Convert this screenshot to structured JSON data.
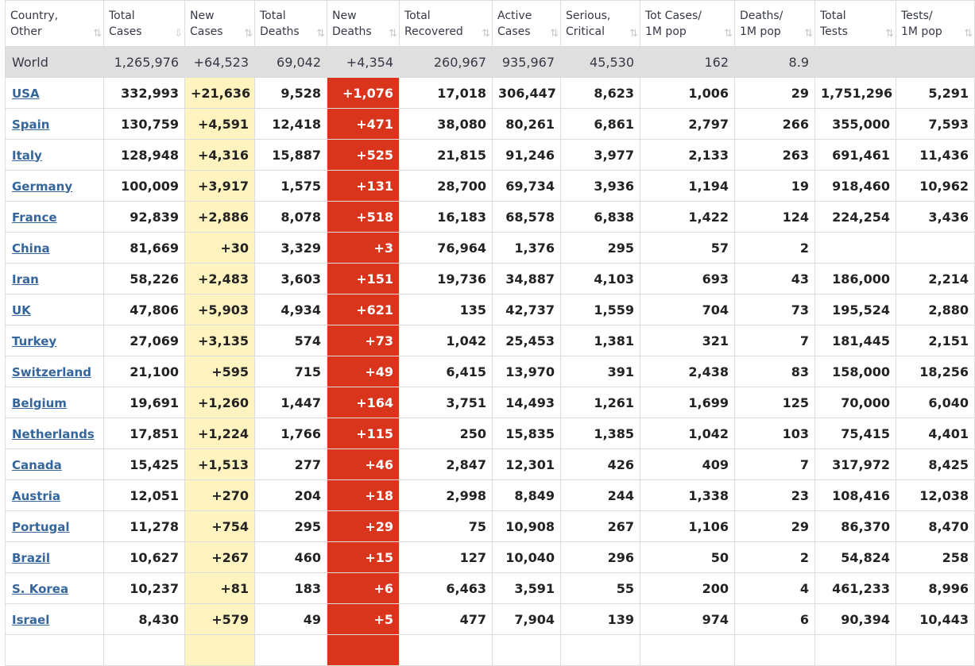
{
  "columns": [
    {
      "l1": "Country,",
      "l2": "Other",
      "sort": "⇅"
    },
    {
      "l1": "Total",
      "l2": "Cases",
      "sort": "⇩"
    },
    {
      "l1": "New",
      "l2": "Cases",
      "sort": "⇅"
    },
    {
      "l1": "Total",
      "l2": "Deaths",
      "sort": "⇅"
    },
    {
      "l1": "New",
      "l2": "Deaths",
      "sort": "⇅"
    },
    {
      "l1": "Total",
      "l2": "Recovered",
      "sort": "⇅"
    },
    {
      "l1": "Active",
      "l2": "Cases",
      "sort": "⇅"
    },
    {
      "l1": "Serious,",
      "l2": "Critical",
      "sort": "⇅"
    },
    {
      "l1": "Tot Cases/",
      "l2": "1M pop",
      "sort": "⇅"
    },
    {
      "l1": "Deaths/",
      "l2": "1M pop",
      "sort": "⇅"
    },
    {
      "l1": "Total",
      "l2": "Tests",
      "sort": "⇅"
    },
    {
      "l1": "Tests/",
      "l2": "1M pop",
      "sort": "⇅"
    }
  ],
  "world": {
    "country": "World",
    "total_cases": "1,265,976",
    "new_cases": "+64,523",
    "total_deaths": "69,042",
    "new_deaths": "+4,354",
    "total_recovered": "260,967",
    "active_cases": "935,967",
    "serious": "45,530",
    "cases_per_m": "162",
    "deaths_per_m": "8.9",
    "total_tests": "",
    "tests_per_m": ""
  },
  "rows": [
    {
      "country": "USA",
      "total_cases": "332,993",
      "new_cases": "+21,636",
      "total_deaths": "9,528",
      "new_deaths": "+1,076",
      "total_recovered": "17,018",
      "active_cases": "306,447",
      "serious": "8,623",
      "cases_per_m": "1,006",
      "deaths_per_m": "29",
      "total_tests": "1,751,296",
      "tests_per_m": "5,291"
    },
    {
      "country": "Spain",
      "total_cases": "130,759",
      "new_cases": "+4,591",
      "total_deaths": "12,418",
      "new_deaths": "+471",
      "total_recovered": "38,080",
      "active_cases": "80,261",
      "serious": "6,861",
      "cases_per_m": "2,797",
      "deaths_per_m": "266",
      "total_tests": "355,000",
      "tests_per_m": "7,593"
    },
    {
      "country": "Italy",
      "total_cases": "128,948",
      "new_cases": "+4,316",
      "total_deaths": "15,887",
      "new_deaths": "+525",
      "total_recovered": "21,815",
      "active_cases": "91,246",
      "serious": "3,977",
      "cases_per_m": "2,133",
      "deaths_per_m": "263",
      "total_tests": "691,461",
      "tests_per_m": "11,436"
    },
    {
      "country": "Germany",
      "total_cases": "100,009",
      "new_cases": "+3,917",
      "total_deaths": "1,575",
      "new_deaths": "+131",
      "total_recovered": "28,700",
      "active_cases": "69,734",
      "serious": "3,936",
      "cases_per_m": "1,194",
      "deaths_per_m": "19",
      "total_tests": "918,460",
      "tests_per_m": "10,962"
    },
    {
      "country": "France",
      "total_cases": "92,839",
      "new_cases": "+2,886",
      "total_deaths": "8,078",
      "new_deaths": "+518",
      "total_recovered": "16,183",
      "active_cases": "68,578",
      "serious": "6,838",
      "cases_per_m": "1,422",
      "deaths_per_m": "124",
      "total_tests": "224,254",
      "tests_per_m": "3,436"
    },
    {
      "country": "China",
      "total_cases": "81,669",
      "new_cases": "+30",
      "total_deaths": "3,329",
      "new_deaths": "+3",
      "total_recovered": "76,964",
      "active_cases": "1,376",
      "serious": "295",
      "cases_per_m": "57",
      "deaths_per_m": "2",
      "total_tests": "",
      "tests_per_m": ""
    },
    {
      "country": "Iran",
      "total_cases": "58,226",
      "new_cases": "+2,483",
      "total_deaths": "3,603",
      "new_deaths": "+151",
      "total_recovered": "19,736",
      "active_cases": "34,887",
      "serious": "4,103",
      "cases_per_m": "693",
      "deaths_per_m": "43",
      "total_tests": "186,000",
      "tests_per_m": "2,214"
    },
    {
      "country": "UK",
      "total_cases": "47,806",
      "new_cases": "+5,903",
      "total_deaths": "4,934",
      "new_deaths": "+621",
      "total_recovered": "135",
      "active_cases": "42,737",
      "serious": "1,559",
      "cases_per_m": "704",
      "deaths_per_m": "73",
      "total_tests": "195,524",
      "tests_per_m": "2,880"
    },
    {
      "country": "Turkey",
      "total_cases": "27,069",
      "new_cases": "+3,135",
      "total_deaths": "574",
      "new_deaths": "+73",
      "total_recovered": "1,042",
      "active_cases": "25,453",
      "serious": "1,381",
      "cases_per_m": "321",
      "deaths_per_m": "7",
      "total_tests": "181,445",
      "tests_per_m": "2,151"
    },
    {
      "country": "Switzerland",
      "total_cases": "21,100",
      "new_cases": "+595",
      "total_deaths": "715",
      "new_deaths": "+49",
      "total_recovered": "6,415",
      "active_cases": "13,970",
      "serious": "391",
      "cases_per_m": "2,438",
      "deaths_per_m": "83",
      "total_tests": "158,000",
      "tests_per_m": "18,256"
    },
    {
      "country": "Belgium",
      "total_cases": "19,691",
      "new_cases": "+1,260",
      "total_deaths": "1,447",
      "new_deaths": "+164",
      "total_recovered": "3,751",
      "active_cases": "14,493",
      "serious": "1,261",
      "cases_per_m": "1,699",
      "deaths_per_m": "125",
      "total_tests": "70,000",
      "tests_per_m": "6,040"
    },
    {
      "country": "Netherlands",
      "total_cases": "17,851",
      "new_cases": "+1,224",
      "total_deaths": "1,766",
      "new_deaths": "+115",
      "total_recovered": "250",
      "active_cases": "15,835",
      "serious": "1,385",
      "cases_per_m": "1,042",
      "deaths_per_m": "103",
      "total_tests": "75,415",
      "tests_per_m": "4,401"
    },
    {
      "country": "Canada",
      "total_cases": "15,425",
      "new_cases": "+1,513",
      "total_deaths": "277",
      "new_deaths": "+46",
      "total_recovered": "2,847",
      "active_cases": "12,301",
      "serious": "426",
      "cases_per_m": "409",
      "deaths_per_m": "7",
      "total_tests": "317,972",
      "tests_per_m": "8,425"
    },
    {
      "country": "Austria",
      "total_cases": "12,051",
      "new_cases": "+270",
      "total_deaths": "204",
      "new_deaths": "+18",
      "total_recovered": "2,998",
      "active_cases": "8,849",
      "serious": "244",
      "cases_per_m": "1,338",
      "deaths_per_m": "23",
      "total_tests": "108,416",
      "tests_per_m": "12,038"
    },
    {
      "country": "Portugal",
      "total_cases": "11,278",
      "new_cases": "+754",
      "total_deaths": "295",
      "new_deaths": "+29",
      "total_recovered": "75",
      "active_cases": "10,908",
      "serious": "267",
      "cases_per_m": "1,106",
      "deaths_per_m": "29",
      "total_tests": "86,370",
      "tests_per_m": "8,470"
    },
    {
      "country": "Brazil",
      "total_cases": "10,627",
      "new_cases": "+267",
      "total_deaths": "460",
      "new_deaths": "+15",
      "total_recovered": "127",
      "active_cases": "10,040",
      "serious": "296",
      "cases_per_m": "50",
      "deaths_per_m": "2",
      "total_tests": "54,824",
      "tests_per_m": "258"
    },
    {
      "country": "S. Korea",
      "total_cases": "10,237",
      "new_cases": "+81",
      "total_deaths": "183",
      "new_deaths": "+6",
      "total_recovered": "6,463",
      "active_cases": "3,591",
      "serious": "55",
      "cases_per_m": "200",
      "deaths_per_m": "4",
      "total_tests": "461,233",
      "tests_per_m": "8,996"
    },
    {
      "country": "Israel",
      "total_cases": "8,430",
      "new_cases": "+579",
      "total_deaths": "49",
      "new_deaths": "+5",
      "total_recovered": "477",
      "active_cases": "7,904",
      "serious": "139",
      "cases_per_m": "974",
      "deaths_per_m": "6",
      "total_tests": "90,394",
      "tests_per_m": "10,443"
    },
    {
      "country": "",
      "total_cases": "",
      "new_cases": "",
      "total_deaths": "",
      "new_deaths": "",
      "total_recovered": "",
      "active_cases": "",
      "serious": "",
      "cases_per_m": "",
      "deaths_per_m": "",
      "total_tests": "",
      "tests_per_m": ""
    }
  ],
  "colors": {
    "new_cases_bg": "#fff3c0",
    "new_deaths_bg": "#d9341c",
    "world_bg": "#dfdfdf",
    "link": "#35669b"
  }
}
